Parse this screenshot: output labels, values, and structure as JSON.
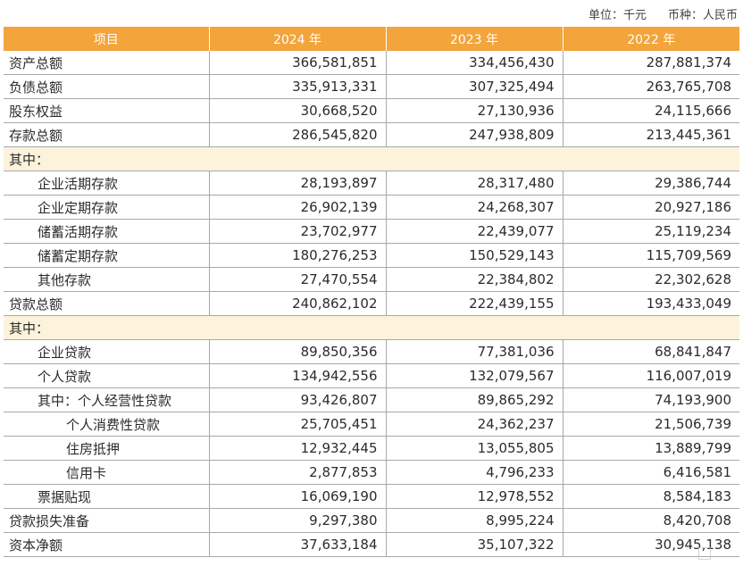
{
  "unit": {
    "unit_label": "单位：千元",
    "currency_label": "币种：人民币"
  },
  "header": {
    "item": "项目",
    "y2024": "2024 年",
    "y2023": "2023 年",
    "y2022": "2022 年"
  },
  "rows": [
    {
      "label": "资产总额",
      "v2024": "366,581,851",
      "v2023": "334,456,430",
      "v2022": "287,881,374"
    },
    {
      "label": "负债总额",
      "v2024": "335,913,331",
      "v2023": "307,325,494",
      "v2022": "263,765,708"
    },
    {
      "label": "股东权益",
      "v2024": "30,668,520",
      "v2023": "27,130,936",
      "v2022": "24,115,666"
    },
    {
      "label": "存款总额",
      "v2024": "286,545,820",
      "v2023": "247,938,809",
      "v2022": "213,445,361"
    },
    {
      "label": "其中："
    },
    {
      "label": "企业活期存款",
      "v2024": "28,193,897",
      "v2023": "28,317,480",
      "v2022": "29,386,744"
    },
    {
      "label": "企业定期存款",
      "v2024": "26,902,139",
      "v2023": "24,268,307",
      "v2022": "20,927,186"
    },
    {
      "label": "储蓄活期存款",
      "v2024": "23,702,977",
      "v2023": "22,439,077",
      "v2022": "25,119,234"
    },
    {
      "label": "储蓄定期存款",
      "v2024": "180,276,253",
      "v2023": "150,529,143",
      "v2022": "115,709,569"
    },
    {
      "label": "其他存款",
      "v2024": "27,470,554",
      "v2023": "22,384,802",
      "v2022": "22,302,628"
    },
    {
      "label": "贷款总额",
      "v2024": "240,862,102",
      "v2023": "222,439,155",
      "v2022": "193,433,049"
    },
    {
      "label": "其中："
    },
    {
      "label": "企业贷款",
      "v2024": "89,850,356",
      "v2023": "77,381,036",
      "v2022": "68,841,847"
    },
    {
      "label": "个人贷款",
      "v2024": "134,942,556",
      "v2023": "132,079,567",
      "v2022": "116,007,019"
    },
    {
      "label": "其中：个人经营性贷款",
      "v2024": "93,426,807",
      "v2023": "89,865,292",
      "v2022": "74,193,900"
    },
    {
      "label": "个人消费性贷款",
      "v2024": "25,705,451",
      "v2023": "24,362,237",
      "v2022": "21,506,739"
    },
    {
      "label": "住房抵押",
      "v2024": "12,932,445",
      "v2023": "13,055,805",
      "v2022": "13,889,799"
    },
    {
      "label": "信用卡",
      "v2024": "2,877,853",
      "v2023": "4,796,233",
      "v2022": "6,416,581"
    },
    {
      "label": "票据贴现",
      "v2024": "16,069,190",
      "v2023": "12,978,552",
      "v2022": "8,584,183"
    },
    {
      "label": "贷款损失准备",
      "v2024": "9,297,380",
      "v2023": "8,995,224",
      "v2022": "8,420,708"
    },
    {
      "label": "资本净额",
      "v2024": "37,633,184",
      "v2023": "35,107,322",
      "v2022": "30,945,138"
    }
  ]
}
